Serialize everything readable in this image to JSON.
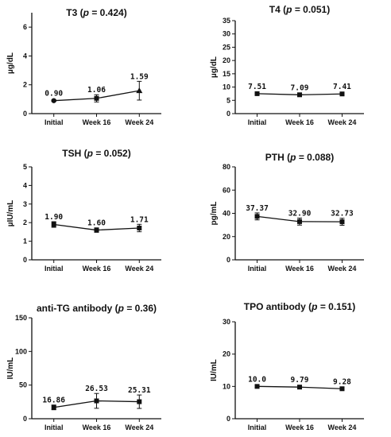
{
  "chart_data": [
    {
      "type": "line",
      "title": "T3 (p = 0.424)",
      "title_prefix": "T3 (",
      "title_p": "p",
      "title_suffix": " = 0.424)",
      "ylabel": "µg/dL",
      "categories": [
        "Initial",
        "Week 16",
        "Week 24"
      ],
      "values": [
        0.9,
        1.06,
        1.59
      ],
      "value_labels": [
        "0.90",
        "1.06",
        "1.59"
      ],
      "error": [
        0.05,
        0.25,
        0.65
      ],
      "ylim": [
        0,
        7
      ],
      "yticks": [
        0,
        2,
        4,
        6
      ],
      "marker": "mixed",
      "markers": [
        "circle",
        "square",
        "triangle"
      ]
    },
    {
      "type": "line",
      "title": "T4 (p = 0.051)",
      "title_prefix": "T4 (",
      "title_p": "p",
      "title_suffix": " = 0.051)",
      "ylabel": "µg/dL",
      "categories": [
        "Initial",
        "Week 16",
        "Week 24"
      ],
      "values": [
        7.51,
        7.09,
        7.41
      ],
      "value_labels": [
        "7.51",
        "7.09",
        "7.41"
      ],
      "error": [
        0.1,
        0.1,
        0.3
      ],
      "ylim": [
        0,
        35
      ],
      "yticks": [
        0,
        5,
        10,
        15,
        20,
        25,
        30,
        35
      ],
      "marker": "square"
    },
    {
      "type": "line",
      "title": "TSH (p = 0.052)",
      "title_prefix": "TSH (",
      "title_p": "p",
      "title_suffix": " = 0.052)",
      "ylabel": "µIU/mL",
      "categories": [
        "Initial",
        "Week 16",
        "Week 24"
      ],
      "values": [
        1.9,
        1.6,
        1.71
      ],
      "value_labels": [
        "1.90",
        "1.60",
        "1.71"
      ],
      "error": [
        0.15,
        0.12,
        0.2
      ],
      "ylim": [
        0,
        5
      ],
      "yticks": [
        0,
        1,
        2,
        3,
        4,
        5
      ],
      "marker": "square"
    },
    {
      "type": "line",
      "title": "PTH (p = 0.088)",
      "title_prefix": "PTH (",
      "title_p": "p",
      "title_suffix": " = 0.088)",
      "ylabel": "pg/mL",
      "categories": [
        "Initial",
        "Week 16",
        "Week 24"
      ],
      "values": [
        37.37,
        32.9,
        32.73
      ],
      "value_labels": [
        "37.37",
        "32.90",
        "32.73"
      ],
      "error": [
        3.0,
        3.0,
        3.0
      ],
      "ylim": [
        0,
        80
      ],
      "yticks": [
        0,
        20,
        40,
        60,
        80
      ],
      "marker": "square"
    },
    {
      "type": "line",
      "title": "anti-TG antibody (p = 0.36)",
      "title_prefix": "anti-TG antibody (",
      "title_p": "p",
      "title_suffix": " = 0.36)",
      "ylabel": "IU/mL",
      "categories": [
        "Initial",
        "Week 16",
        "Week 24"
      ],
      "values": [
        16.86,
        26.53,
        25.31
      ],
      "value_labels": [
        "16.86",
        "26.53",
        "25.31"
      ],
      "error": [
        3.5,
        11.0,
        10.0
      ],
      "ylim": [
        0,
        150
      ],
      "yticks": [
        0,
        50,
        100,
        150
      ],
      "marker": "square"
    },
    {
      "type": "line",
      "title": "TPO antibody (p = 0.151)",
      "title_prefix": "TPO antibody (",
      "title_p": "p",
      "title_suffix": " = 0.151)",
      "ylabel": "IU/mL",
      "categories": [
        "Initial",
        "Week 16",
        "Week 24"
      ],
      "values": [
        10.0,
        9.79,
        9.28
      ],
      "value_labels": [
        "10.0",
        "9.79",
        "9.28"
      ],
      "error": [
        0.3,
        0.3,
        0.3
      ],
      "ylim": [
        0,
        30
      ],
      "yticks": [
        0,
        10,
        20,
        30
      ],
      "marker": "square"
    }
  ]
}
